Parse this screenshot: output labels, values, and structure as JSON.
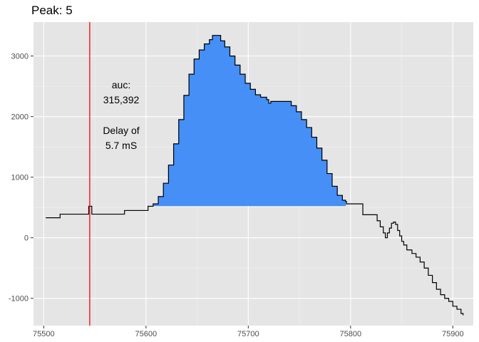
{
  "chart_data": {
    "type": "line",
    "title": "Peak: 5",
    "xlabel": "",
    "ylabel": "",
    "xlim": [
      75490,
      75920
    ],
    "ylim": [
      -1450,
      3560
    ],
    "x_ticks": [
      75500,
      75600,
      75700,
      75800,
      75900
    ],
    "y_ticks": [
      -1000,
      0,
      1000,
      2000,
      3000
    ],
    "x_tick_labels": [
      "75500",
      "75600",
      "75700",
      "75800",
      "75900"
    ],
    "y_tick_labels": [
      "-1000",
      "0",
      "1000",
      "2000",
      "3000"
    ],
    "grid": true,
    "background": "#e5e5e5",
    "series": [
      {
        "color": "#000000",
        "step": true,
        "points": [
          [
            75502,
            330
          ],
          [
            75515,
            330
          ],
          [
            75516,
            390
          ],
          [
            75543,
            390
          ],
          [
            75544,
            520
          ],
          [
            75546,
            520
          ],
          [
            75547,
            390
          ],
          [
            75578,
            390
          ],
          [
            75579,
            450
          ],
          [
            75601,
            450
          ],
          [
            75602,
            520
          ],
          [
            75606,
            520
          ],
          [
            75607,
            560
          ],
          [
            75612,
            680
          ],
          [
            75617,
            900
          ],
          [
            75622,
            1200
          ],
          [
            75627,
            1550
          ],
          [
            75632,
            1950
          ],
          [
            75637,
            2350
          ],
          [
            75642,
            2700
          ],
          [
            75647,
            2950
          ],
          [
            75652,
            3100
          ],
          [
            75657,
            3200
          ],
          [
            75662,
            3270
          ],
          [
            75665,
            3340
          ],
          [
            75669,
            3340
          ],
          [
            75673,
            3250
          ],
          [
            75677,
            3150
          ],
          [
            75682,
            3000
          ],
          [
            75687,
            2850
          ],
          [
            75692,
            2700
          ],
          [
            75697,
            2550
          ],
          [
            75702,
            2450
          ],
          [
            75707,
            2360
          ],
          [
            75712,
            2320
          ],
          [
            75718,
            2280
          ],
          [
            75720,
            2220
          ],
          [
            75722,
            2250
          ],
          [
            75737,
            2250
          ],
          [
            75742,
            2180
          ],
          [
            75747,
            2080
          ],
          [
            75752,
            1950
          ],
          [
            75757,
            1820
          ],
          [
            75762,
            1660
          ],
          [
            75767,
            1480
          ],
          [
            75772,
            1280
          ],
          [
            75777,
            1060
          ],
          [
            75782,
            850
          ],
          [
            75787,
            700
          ],
          [
            75792,
            620
          ],
          [
            75795,
            600
          ],
          [
            75796,
            560
          ],
          [
            75811,
            560
          ],
          [
            75812,
            380
          ],
          [
            75823,
            380
          ],
          [
            75826,
            280
          ],
          [
            75829,
            180
          ],
          [
            75832,
            80
          ],
          [
            75834,
            0
          ],
          [
            75836,
            80
          ],
          [
            75838,
            160
          ],
          [
            75840,
            240
          ],
          [
            75842,
            260
          ],
          [
            75844,
            220
          ],
          [
            75846,
            120
          ],
          [
            75848,
            30
          ],
          [
            75850,
            -60
          ],
          [
            75852,
            -120
          ],
          [
            75855,
            -200
          ],
          [
            75860,
            -260
          ],
          [
            75864,
            -320
          ],
          [
            75868,
            -400
          ],
          [
            75872,
            -500
          ],
          [
            75876,
            -620
          ],
          [
            75880,
            -740
          ],
          [
            75884,
            -850
          ],
          [
            75888,
            -940
          ],
          [
            75892,
            -1000
          ],
          [
            75896,
            -1050
          ],
          [
            75900,
            -1130
          ],
          [
            75904,
            -1180
          ],
          [
            75908,
            -1250
          ],
          [
            75910,
            -1280
          ]
        ]
      }
    ],
    "area": {
      "color": "#3d8af7",
      "baseline": 530,
      "x_start": 75607,
      "x_end": 75795
    },
    "vline": {
      "x": 75545,
      "color": "#ff0000"
    },
    "annotations": {
      "auc_label": "auc:",
      "auc_value": "315,392",
      "delay_label": "Delay of",
      "delay_value": "5.7 mS"
    }
  }
}
